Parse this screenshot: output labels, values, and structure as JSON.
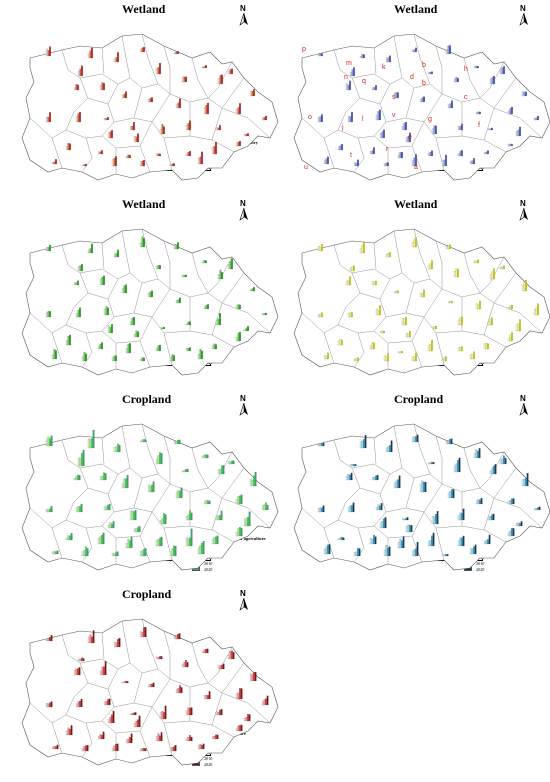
{
  "panels": [
    {
      "id": "p1",
      "title": "Wetland",
      "color": "#c42020",
      "legend_title": "Output value of primary industry",
      "legend_ref": "0.88",
      "legend_items": [
        {
          "label": "2000",
          "color": "#f6e1d6"
        },
        {
          "label": "2010",
          "color": "#d6643c"
        },
        {
          "label": "2020",
          "color": "#c41a1a"
        }
      ],
      "scale": [
        "0",
        "20",
        "40",
        "80 km"
      ],
      "has_region_labels": false
    },
    {
      "id": "p2",
      "title": "Wetland",
      "color": "#4a5cc0",
      "legend_title": "Output value of fisheries",
      "legend_ref": "1.1",
      "legend_items": [
        {
          "label": "2000",
          "color": "#d4d8f2"
        },
        {
          "label": "2010",
          "color": "#8c98dc"
        },
        {
          "label": "2020",
          "color": "#4150bc"
        }
      ],
      "scale": [
        "0",
        "20",
        "40",
        "80 km"
      ],
      "has_region_labels": true
    },
    {
      "id": "p3",
      "title": "Wetland",
      "color": "#2aa02a",
      "legend_title": "Potential evapotranspiration",
      "legend_ref": "1.1",
      "legend_items": [
        {
          "label": "2000",
          "color": "#c8f0c0"
        },
        {
          "label": "2010",
          "color": "#62cc4a"
        },
        {
          "label": "2020",
          "color": "#22a022"
        }
      ],
      "scale": [
        "0",
        "20",
        "40",
        "80 km"
      ],
      "has_region_labels": false
    },
    {
      "id": "p4",
      "title": "Wetland",
      "color": "#d4d420",
      "legend_title": "Population density",
      "legend_ref": "0.7",
      "legend_items": [
        {
          "label": "2000",
          "color": "#fafac8"
        },
        {
          "label": "2010",
          "color": "#f0f07a"
        },
        {
          "label": "2020",
          "color": "#d8d820"
        }
      ],
      "scale": [
        "0",
        "20",
        "40",
        "80 km"
      ],
      "has_region_labels": false
    },
    {
      "id": "p5",
      "title": "Cropland",
      "color": "#3cb85a",
      "legend_title": "Effective irrigated area of agriculture",
      "legend_ref": "0.74",
      "legend_items": [
        {
          "label": "1990",
          "color": "#d2f5c8"
        },
        {
          "label": "2000",
          "color": "#9ee88c"
        },
        {
          "label": "2010",
          "color": "#5ed25a"
        },
        {
          "label": "2020",
          "color": "#2aa86e"
        }
      ],
      "scale": [
        "0",
        "15",
        "30",
        "60 km"
      ],
      "has_region_labels": false
    },
    {
      "id": "p6",
      "title": "Cropland",
      "color": "#1e6e9a",
      "legend_title": "Sown area of crops",
      "legend_ref": "0.59",
      "legend_items": [
        {
          "label": "1990",
          "color": "#d4eef8"
        },
        {
          "label": "2000",
          "color": "#8ed0ec"
        },
        {
          "label": "2010",
          "color": "#3a9ac8"
        },
        {
          "label": "2020",
          "color": "#123e5e"
        }
      ],
      "scale": [
        "0",
        "15",
        "30",
        "60 km"
      ],
      "has_region_labels": false
    },
    {
      "id": "p7",
      "title": "Cropland",
      "color": "#b01818",
      "legend_title": "Output value of agriculture",
      "legend_ref": "0.74",
      "legend_items": [
        {
          "label": "1990",
          "color": "#f8d4d4"
        },
        {
          "label": "2000",
          "color": "#ee8c8c"
        },
        {
          "label": "2010",
          "color": "#d43a3a"
        },
        {
          "label": "2020",
          "color": "#8a1010"
        }
      ],
      "scale": [
        "0",
        "15",
        "30",
        "60 km"
      ],
      "has_region_labels": false
    }
  ],
  "region_labels": [
    "p",
    "m",
    "k",
    "b",
    "h",
    "n",
    "q",
    "d",
    "b",
    "c",
    "s",
    "o",
    "j",
    "l",
    "v",
    "g",
    "f",
    "e",
    "t",
    "r",
    "a",
    "u"
  ],
  "north_label": "N"
}
